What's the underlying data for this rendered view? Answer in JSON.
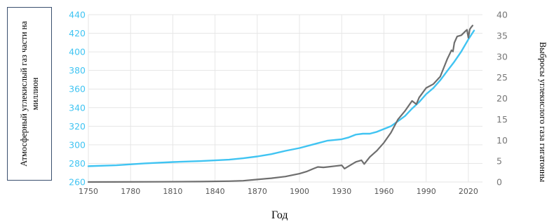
{
  "chart_data": {
    "type": "line",
    "xlabel": "Год",
    "ylabel_left": "Атмосферный углекислый газ части на миллион",
    "ylabel_right": "Выбросы углекислого газа гигатонны",
    "xlim": [
      1750,
      2030
    ],
    "xticks": [
      1750,
      1780,
      1810,
      1840,
      1870,
      1900,
      1930,
      1960,
      1990,
      2020
    ],
    "ylim_left": [
      260,
      440
    ],
    "yticks_left": [
      260,
      280,
      300,
      320,
      340,
      360,
      380,
      400,
      420,
      440
    ],
    "ylim_right": [
      0,
      40
    ],
    "yticks_right": [
      0,
      5,
      10,
      15,
      20,
      25,
      30,
      35,
      40
    ],
    "grid": true,
    "series": [
      {
        "axis": "left",
        "color": "#40c4f2",
        "x": [
          1750,
          1770,
          1790,
          1810,
          1830,
          1850,
          1860,
          1870,
          1880,
          1890,
          1900,
          1910,
          1920,
          1930,
          1935,
          1940,
          1945,
          1950,
          1955,
          1960,
          1965,
          1970,
          1975,
          1980,
          1985,
          1990,
          1995,
          2000,
          2005,
          2010,
          2015,
          2020,
          2024
        ],
        "values": [
          277,
          278,
          280,
          281.5,
          282.5,
          284,
          285.5,
          287.5,
          290,
          293.5,
          296.5,
          300.5,
          304.5,
          306,
          308,
          311,
          312,
          312,
          314,
          317,
          320,
          325.5,
          331,
          339,
          346,
          354.5,
          361,
          369.5,
          379.5,
          389.5,
          400.5,
          413.5,
          423
        ]
      },
      {
        "axis": "right",
        "color": "#6e6e6e",
        "x": [
          1750,
          1800,
          1830,
          1850,
          1860,
          1870,
          1880,
          1890,
          1900,
          1905,
          1910,
          1913,
          1917,
          1920,
          1925,
          1930,
          1932,
          1935,
          1940,
          1944,
          1946,
          1950,
          1955,
          1960,
          1965,
          1970,
          1975,
          1980,
          1983,
          1985,
          1990,
          1995,
          2000,
          2005,
          2008,
          2009,
          2010,
          2012,
          2015,
          2018,
          2019,
          2020,
          2021,
          2022,
          2023
        ],
        "values": [
          0,
          0.05,
          0.1,
          0.2,
          0.3,
          0.6,
          0.9,
          1.3,
          2.0,
          2.5,
          3.2,
          3.6,
          3.5,
          3.6,
          3.8,
          4.0,
          3.2,
          3.8,
          4.8,
          5.2,
          4.3,
          6.0,
          7.5,
          9.4,
          11.8,
          15.0,
          17.0,
          19.4,
          18.6,
          20.2,
          22.5,
          23.4,
          25.2,
          29.4,
          31.5,
          31.2,
          33.3,
          34.8,
          35.1,
          36.1,
          36.4,
          34.5,
          36.5,
          37.0,
          37.4
        ]
      }
    ]
  }
}
